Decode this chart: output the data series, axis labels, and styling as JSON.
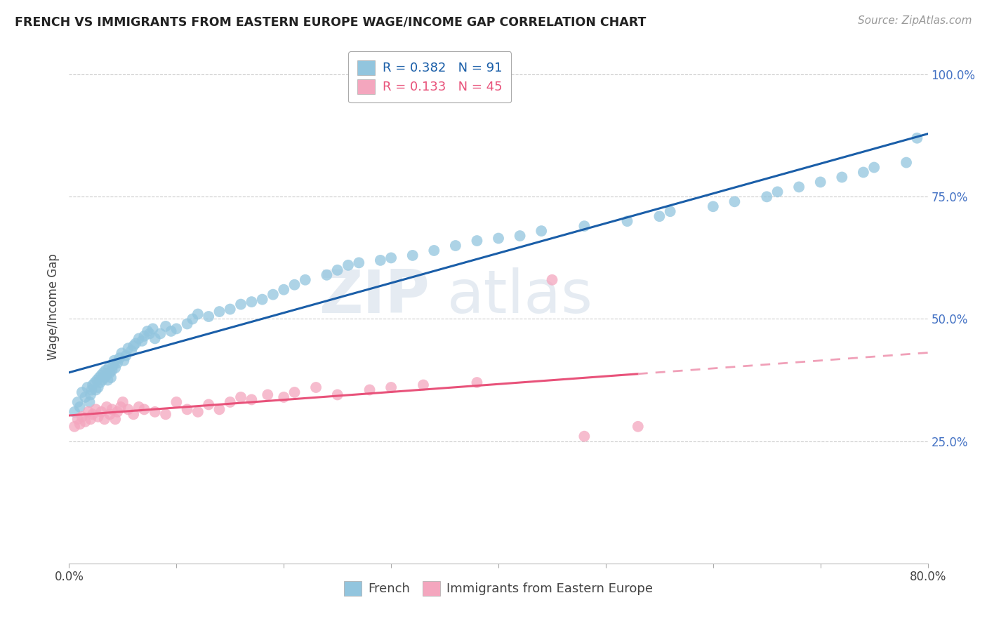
{
  "title": "FRENCH VS IMMIGRANTS FROM EASTERN EUROPE WAGE/INCOME GAP CORRELATION CHART",
  "source": "Source: ZipAtlas.com",
  "ylabel": "Wage/Income Gap",
  "xlim": [
    0.0,
    0.8
  ],
  "ylim": [
    0.0,
    1.05
  ],
  "xticks": [
    0.0,
    0.1,
    0.2,
    0.3,
    0.4,
    0.5,
    0.6,
    0.7,
    0.8
  ],
  "xticklabels": [
    "0.0%",
    "",
    "",
    "",
    "",
    "",
    "",
    "",
    "80.0%"
  ],
  "yticks": [
    0.25,
    0.5,
    0.75,
    1.0
  ],
  "yticklabels": [
    "25.0%",
    "50.0%",
    "75.0%",
    "100.0%"
  ],
  "french_R": 0.382,
  "french_N": 91,
  "immig_R": 0.133,
  "immig_N": 45,
  "french_color": "#92c5de",
  "immig_color": "#f4a6be",
  "trendline_french_color": "#1a5ea8",
  "trendline_immig_color": "#e8527a",
  "trendline_immig_dashed_color": "#f0a0b8",
  "background_color": "#ffffff",
  "grid_color": "#cccccc",
  "french_scatter_x": [
    0.005,
    0.008,
    0.01,
    0.012,
    0.015,
    0.017,
    0.019,
    0.02,
    0.021,
    0.022,
    0.024,
    0.025,
    0.026,
    0.027,
    0.028,
    0.029,
    0.03,
    0.031,
    0.032,
    0.033,
    0.034,
    0.035,
    0.036,
    0.037,
    0.038,
    0.039,
    0.04,
    0.041,
    0.042,
    0.043,
    0.045,
    0.047,
    0.049,
    0.051,
    0.053,
    0.055,
    0.058,
    0.06,
    0.062,
    0.065,
    0.068,
    0.07,
    0.073,
    0.075,
    0.078,
    0.08,
    0.085,
    0.09,
    0.095,
    0.1,
    0.11,
    0.115,
    0.12,
    0.13,
    0.14,
    0.15,
    0.16,
    0.17,
    0.18,
    0.19,
    0.2,
    0.21,
    0.22,
    0.24,
    0.25,
    0.26,
    0.27,
    0.29,
    0.3,
    0.32,
    0.34,
    0.36,
    0.38,
    0.4,
    0.42,
    0.44,
    0.48,
    0.52,
    0.55,
    0.56,
    0.6,
    0.62,
    0.65,
    0.66,
    0.68,
    0.7,
    0.72,
    0.74,
    0.75,
    0.78,
    0.79
  ],
  "french_scatter_y": [
    0.31,
    0.33,
    0.32,
    0.35,
    0.34,
    0.36,
    0.33,
    0.345,
    0.355,
    0.365,
    0.37,
    0.355,
    0.375,
    0.36,
    0.38,
    0.37,
    0.385,
    0.375,
    0.39,
    0.38,
    0.395,
    0.385,
    0.375,
    0.4,
    0.39,
    0.38,
    0.395,
    0.405,
    0.415,
    0.4,
    0.41,
    0.42,
    0.43,
    0.415,
    0.425,
    0.44,
    0.435,
    0.445,
    0.45,
    0.46,
    0.455,
    0.465,
    0.475,
    0.47,
    0.48,
    0.46,
    0.47,
    0.485,
    0.475,
    0.48,
    0.49,
    0.5,
    0.51,
    0.505,
    0.515,
    0.52,
    0.53,
    0.535,
    0.54,
    0.55,
    0.56,
    0.57,
    0.58,
    0.59,
    0.6,
    0.61,
    0.615,
    0.62,
    0.625,
    0.63,
    0.64,
    0.65,
    0.66,
    0.665,
    0.67,
    0.68,
    0.69,
    0.7,
    0.71,
    0.72,
    0.73,
    0.74,
    0.75,
    0.76,
    0.77,
    0.78,
    0.79,
    0.8,
    0.81,
    0.82,
    0.87
  ],
  "immig_scatter_x": [
    0.005,
    0.008,
    0.01,
    0.012,
    0.015,
    0.018,
    0.02,
    0.022,
    0.025,
    0.027,
    0.03,
    0.033,
    0.035,
    0.038,
    0.04,
    0.043,
    0.045,
    0.048,
    0.05,
    0.055,
    0.06,
    0.065,
    0.07,
    0.08,
    0.09,
    0.1,
    0.11,
    0.12,
    0.13,
    0.14,
    0.15,
    0.16,
    0.17,
    0.185,
    0.2,
    0.21,
    0.23,
    0.25,
    0.28,
    0.3,
    0.33,
    0.38,
    0.45,
    0.48,
    0.53
  ],
  "immig_scatter_y": [
    0.28,
    0.295,
    0.285,
    0.3,
    0.29,
    0.31,
    0.295,
    0.305,
    0.315,
    0.3,
    0.31,
    0.295,
    0.32,
    0.305,
    0.315,
    0.295,
    0.31,
    0.32,
    0.33,
    0.315,
    0.305,
    0.32,
    0.315,
    0.31,
    0.305,
    0.33,
    0.315,
    0.31,
    0.325,
    0.315,
    0.33,
    0.34,
    0.335,
    0.345,
    0.34,
    0.35,
    0.36,
    0.345,
    0.355,
    0.36,
    0.365,
    0.37,
    0.58,
    0.26,
    0.28
  ],
  "watermark_line1": "ZIP",
  "watermark_line2": "atlas"
}
